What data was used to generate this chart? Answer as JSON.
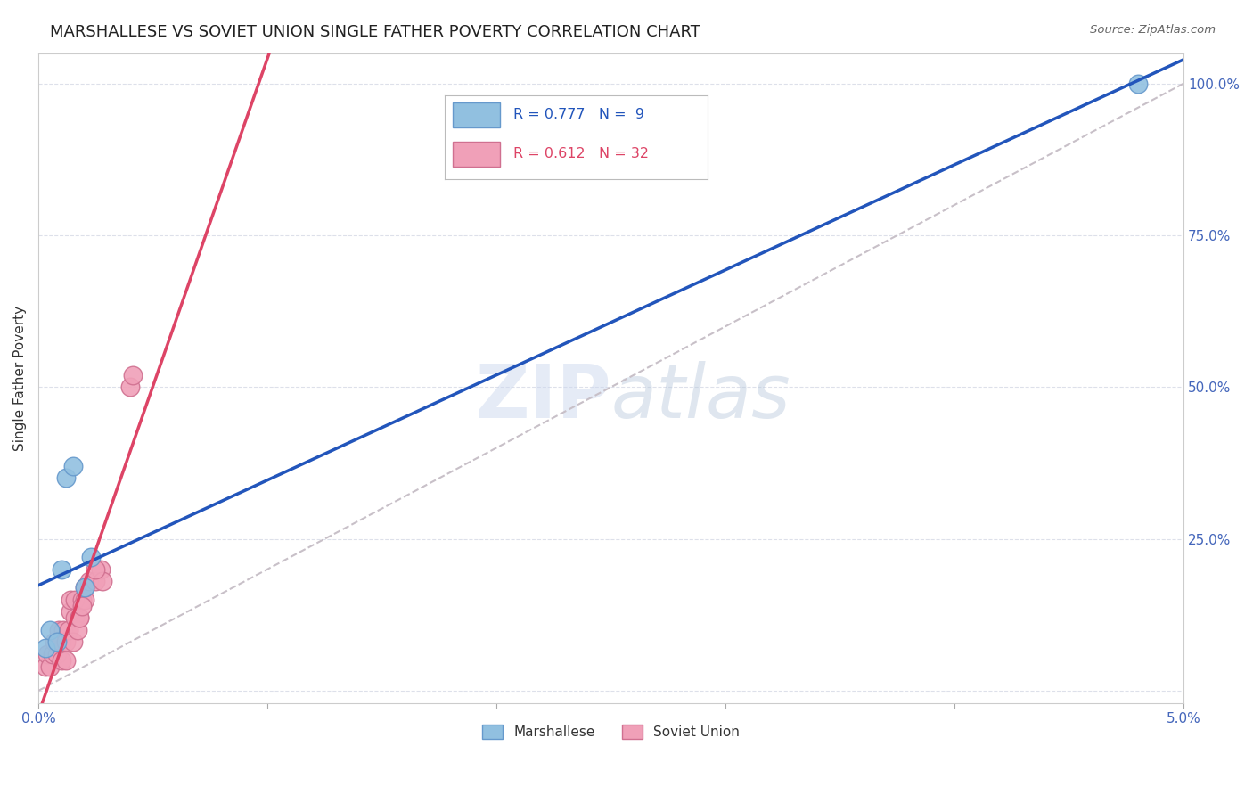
{
  "title": "MARSHALLESE VS SOVIET UNION SINGLE FATHER POVERTY CORRELATION CHART",
  "source": "Source: ZipAtlas.com",
  "ylabel": "Single Father Poverty",
  "xlim": [
    0.0,
    0.05
  ],
  "ylim": [
    -0.02,
    1.05
  ],
  "xticks": [
    0.0,
    0.01,
    0.02,
    0.03,
    0.04,
    0.05
  ],
  "xtick_labels": [
    "0.0%",
    "",
    "",
    "",
    "",
    "5.0%"
  ],
  "yticks": [
    0.0,
    0.25,
    0.5,
    0.75,
    1.0
  ],
  "ytick_labels_right": [
    "",
    "25.0%",
    "50.0%",
    "75.0%",
    "100.0%"
  ],
  "marshallese_x": [
    0.0003,
    0.0005,
    0.0008,
    0.001,
    0.0012,
    0.0015,
    0.002,
    0.0023,
    0.048
  ],
  "marshallese_y": [
    0.07,
    0.1,
    0.08,
    0.2,
    0.35,
    0.37,
    0.17,
    0.22,
    1.0
  ],
  "soviet_x": [
    0.0003,
    0.0004,
    0.0005,
    0.0006,
    0.0007,
    0.0008,
    0.0009,
    0.001,
    0.001,
    0.0011,
    0.0012,
    0.0012,
    0.0013,
    0.0014,
    0.0014,
    0.0015,
    0.0016,
    0.0016,
    0.0017,
    0.0018,
    0.0019,
    0.002,
    0.002,
    0.0022,
    0.0025,
    0.0027,
    0.0028,
    0.004,
    0.0041,
    0.0018,
    0.0019,
    0.0025
  ],
  "soviet_y": [
    0.04,
    0.06,
    0.04,
    0.06,
    0.08,
    0.06,
    0.1,
    0.05,
    0.08,
    0.1,
    0.05,
    0.08,
    0.1,
    0.13,
    0.15,
    0.08,
    0.12,
    0.15,
    0.1,
    0.12,
    0.15,
    0.15,
    0.17,
    0.18,
    0.18,
    0.2,
    0.18,
    0.5,
    0.52,
    0.12,
    0.14,
    0.2
  ],
  "marshallese_color": "#91c0e0",
  "marshallese_edge": "#6699cc",
  "soviet_color": "#f0a0b8",
  "soviet_edge": "#d07090",
  "blue_line_color": "#2255bb",
  "pink_line_color": "#dd4466",
  "diag_color": "#c8c0c8",
  "R_marshallese": 0.777,
  "N_marshallese": 9,
  "R_soviet": 0.612,
  "N_soviet": 32,
  "legend_label_marshallese": "Marshallese",
  "legend_label_soviet": "Soviet Union",
  "watermark_zip": "ZIP",
  "watermark_atlas": "atlas",
  "background_color": "#ffffff",
  "axis_color": "#4466bb",
  "grid_color": "#dde0ea",
  "title_fontsize": 13,
  "axis_label_fontsize": 11,
  "tick_fontsize": 11,
  "legend_fontsize": 12
}
